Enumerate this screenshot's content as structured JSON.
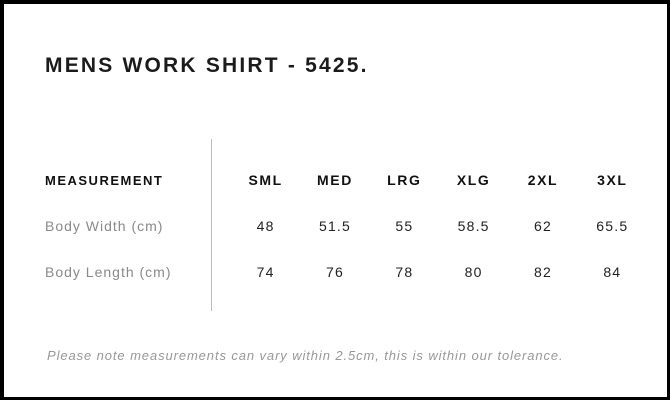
{
  "page": {
    "title": "MENS WORK SHIRT - 5425."
  },
  "size_chart": {
    "measurement_header": "MEASUREMENT",
    "sizes": [
      "SML",
      "MED",
      "LRG",
      "XLG",
      "2XL",
      "3XL"
    ],
    "rows": [
      {
        "label": "Body Width (cm)",
        "values": [
          "48",
          "51.5",
          "55",
          "58.5",
          "62",
          "65.5"
        ]
      },
      {
        "label": "Body Length (cm)",
        "values": [
          "74",
          "76",
          "78",
          "80",
          "82",
          "84"
        ]
      }
    ],
    "note": "Please note measurements can vary within 2.5cm, this is within our tolerance."
  },
  "chart_data": {
    "type": "table",
    "title": "MENS WORK SHIRT - 5425.",
    "categories": [
      "SML",
      "MED",
      "LRG",
      "XLG",
      "2XL",
      "3XL"
    ],
    "series": [
      {
        "name": "Body Width (cm)",
        "values": [
          48,
          51.5,
          55,
          58.5,
          62,
          65.5
        ]
      },
      {
        "name": "Body Length (cm)",
        "values": [
          74,
          76,
          78,
          80,
          82,
          84
        ]
      }
    ],
    "footnote": "Please note measurements can vary within 2.5cm, this is within our tolerance."
  },
  "colors": {
    "border": "#000000",
    "title_text": "#1b1b1b",
    "header_text": "#111111",
    "label_text": "#8a8a8a",
    "value_text": "#222222",
    "note_text": "#989898",
    "divider": "#bdbdbd",
    "background": "#ffffff"
  }
}
